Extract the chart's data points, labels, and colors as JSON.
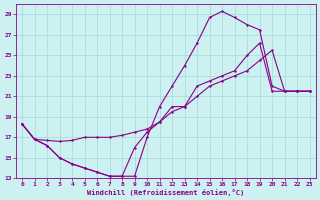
{
  "xlabel": "Windchill (Refroidissement éolien,°C)",
  "ylabel": "",
  "background_color": "#cdf0f0",
  "line_color": "#880088",
  "grid_color": "#aadddd",
  "xlim": [
    -0.5,
    23.5
  ],
  "ylim": [
    13,
    30
  ],
  "xticks": [
    0,
    1,
    2,
    3,
    4,
    5,
    6,
    7,
    8,
    9,
    10,
    11,
    12,
    13,
    14,
    15,
    16,
    17,
    18,
    19,
    20,
    21,
    22,
    23
  ],
  "yticks": [
    13,
    15,
    17,
    19,
    21,
    23,
    25,
    27,
    29
  ],
  "line1_x": [
    0,
    1,
    2,
    3,
    4,
    5,
    6,
    7,
    8,
    9,
    10,
    11,
    12,
    13,
    14,
    15,
    16,
    17,
    18,
    19,
    20,
    21,
    22,
    23
  ],
  "line1_y": [
    18.3,
    16.8,
    16.2,
    15.0,
    14.4,
    14.0,
    13.6,
    13.2,
    13.2,
    16.0,
    17.5,
    18.5,
    20.0,
    20.0,
    22.0,
    22.5,
    23.0,
    23.5,
    25.0,
    26.2,
    21.5,
    21.5,
    21.5,
    21.5
  ],
  "line2_x": [
    0,
    1,
    2,
    3,
    4,
    5,
    6,
    7,
    8,
    9,
    10,
    11,
    12,
    13,
    14,
    15,
    16,
    17,
    18,
    19,
    20,
    21,
    22,
    23
  ],
  "line2_y": [
    18.3,
    16.8,
    16.2,
    15.0,
    14.4,
    14.0,
    13.6,
    13.2,
    13.2,
    13.2,
    17.0,
    20.0,
    22.0,
    24.0,
    26.2,
    28.7,
    29.3,
    28.7,
    28.0,
    27.5,
    22.0,
    21.5,
    21.5,
    21.5
  ],
  "line3_x": [
    0,
    1,
    2,
    3,
    4,
    5,
    6,
    7,
    8,
    9,
    10,
    11,
    12,
    13,
    14,
    15,
    16,
    17,
    18,
    19,
    20,
    21,
    22,
    23
  ],
  "line3_y": [
    18.3,
    16.8,
    16.7,
    16.6,
    16.7,
    17.0,
    17.0,
    17.0,
    17.2,
    17.5,
    17.8,
    18.5,
    19.5,
    20.0,
    21.0,
    22.0,
    22.5,
    23.0,
    23.5,
    24.5,
    25.5,
    21.5,
    21.5,
    21.5
  ]
}
